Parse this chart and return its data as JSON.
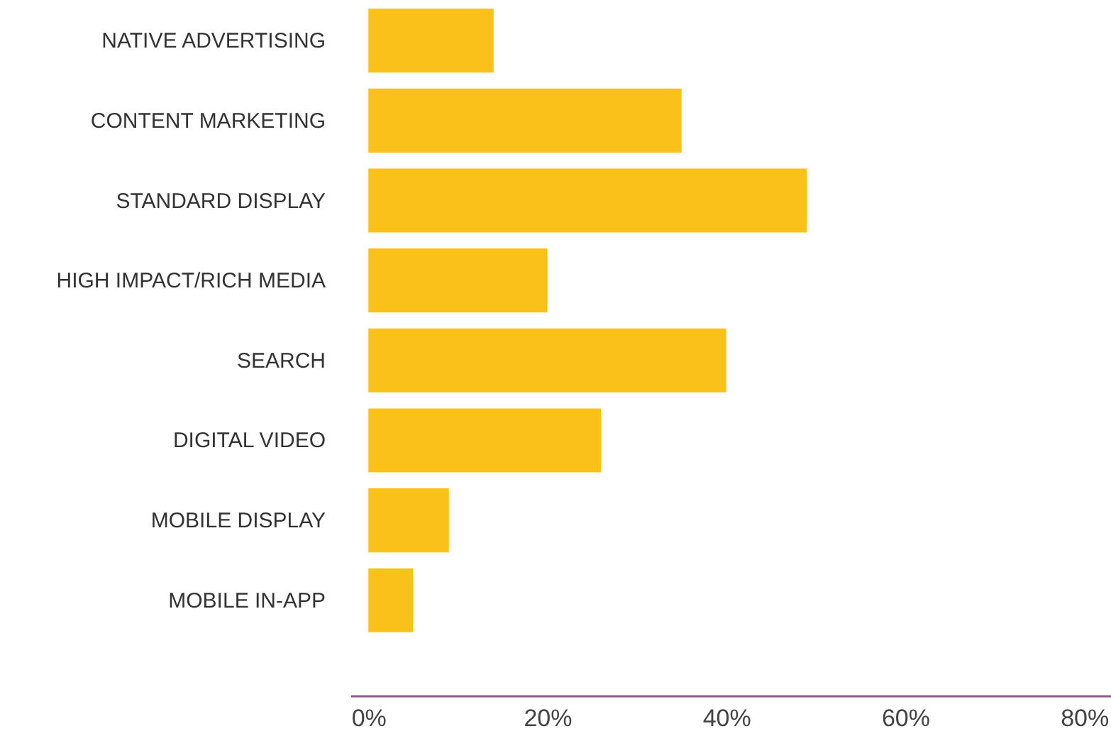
{
  "chart_data": {
    "type": "bar",
    "orientation": "horizontal",
    "categories": [
      "NATIVE ADVERTISING",
      "CONTENT MARKETING",
      "STANDARD DISPLAY",
      "HIGH IMPACT/RICH MEDIA",
      "SEARCH",
      "DIGITAL VIDEO",
      "MOBILE DISPLAY",
      "MOBILE IN-APP"
    ],
    "values": [
      14,
      35,
      49,
      20,
      40,
      26,
      9,
      5
    ],
    "color": "#f9c11a",
    "xlim": [
      -2,
      83
    ],
    "xticks": [
      {
        "value": 0,
        "label": "0%"
      },
      {
        "value": 20,
        "label": "20%"
      },
      {
        "value": 40,
        "label": "40%"
      },
      {
        "value": 60,
        "label": "60%"
      },
      {
        "value": 80,
        "label": "80%"
      }
    ],
    "grid": false
  }
}
